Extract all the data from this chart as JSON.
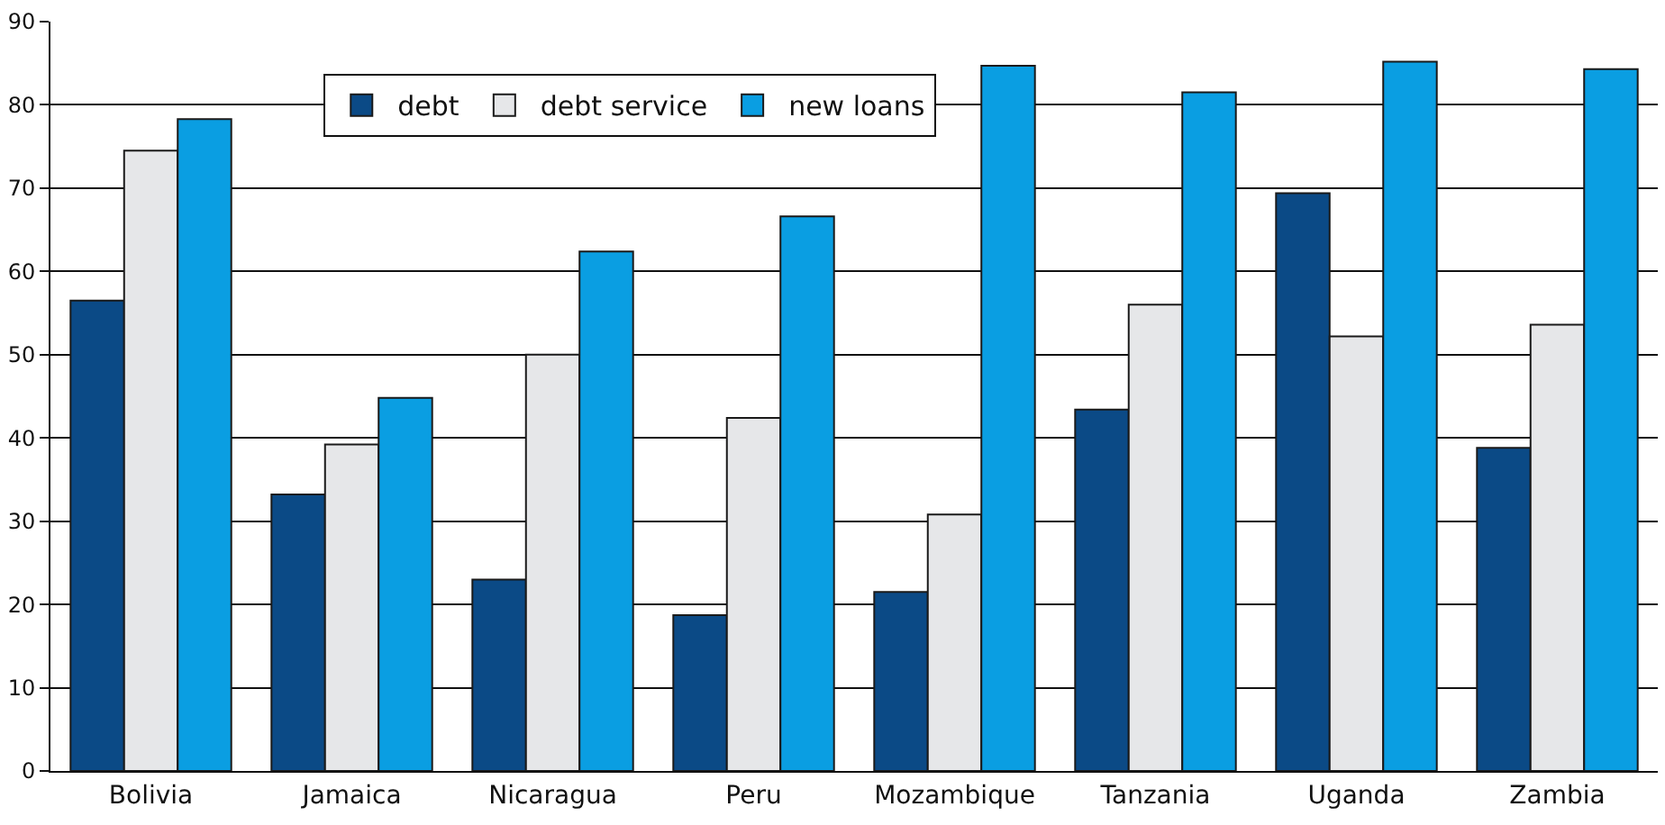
{
  "chart_data": {
    "type": "bar",
    "categories": [
      "Bolivia",
      "Jamaica",
      "Nicaragua",
      "Peru",
      "Mozambique",
      "Tanzania",
      "Uganda",
      "Zambia"
    ],
    "series": [
      {
        "name": "debt",
        "color": "#0b4a86",
        "values": [
          56.5,
          33.2,
          23,
          18.7,
          21.5,
          43.4,
          69.4,
          38.8
        ]
      },
      {
        "name": "debt service",
        "color": "#e6e7e9",
        "values": [
          74.5,
          39.2,
          50,
          42.4,
          30.8,
          56,
          52.2,
          53.6
        ]
      },
      {
        "name": "new loans",
        "color": "#0a9ee2",
        "values": [
          78.3,
          44.8,
          62.4,
          66.6,
          84.7,
          81.5,
          85.2,
          84.3
        ]
      }
    ],
    "ylim": [
      0,
      90
    ],
    "yticks": [
      0,
      10,
      20,
      30,
      40,
      50,
      60,
      70,
      80,
      90
    ],
    "grid": "y",
    "legend": "top left"
  }
}
